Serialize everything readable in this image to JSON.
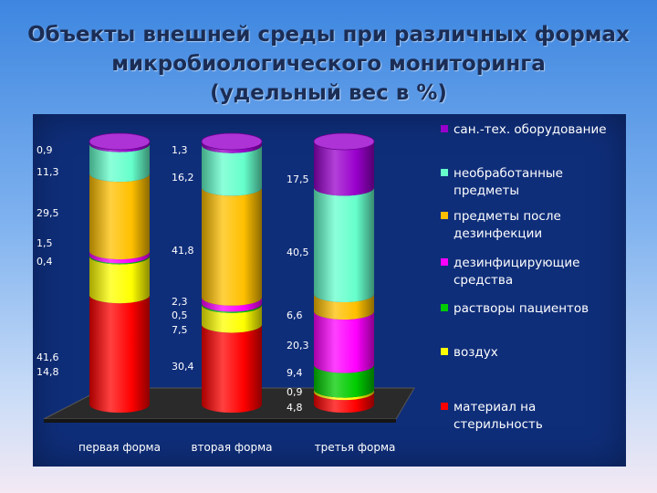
{
  "title": {
    "line1": "Объекты внешней среды при различных формах",
    "line2": "микробиологического мониторинга",
    "line3": "(удельный вес в %)"
  },
  "chart_data": {
    "type": "bar",
    "stacked": true,
    "style": "3d-cylinder",
    "categories": [
      "первая форма",
      "вторая форма",
      "третья форма"
    ],
    "series": [
      {
        "name": "материал на стерильность",
        "legend_lines": [
          "материал на",
          "стерильность"
        ],
        "color": "#ff0000",
        "values": [
          41.6,
          30.4,
          4.8
        ],
        "labels": [
          "41,6",
          "30,4",
          "4,8"
        ]
      },
      {
        "name": "воздух",
        "legend_lines": [
          "воздух"
        ],
        "color": "#ffff00",
        "values": [
          14.8,
          7.5,
          0.9
        ],
        "labels": [
          "14,8",
          "7,5",
          "0,9"
        ]
      },
      {
        "name": "растворы пациентов",
        "legend_lines": [
          "растворы пациентов"
        ],
        "color": "#00cc00",
        "values": [
          0.4,
          0.5,
          9.4
        ],
        "labels": [
          "0,4",
          "0,5",
          "9,4"
        ]
      },
      {
        "name": "дезинфицирующие средства",
        "legend_lines": [
          "дезинфицирующие",
          "средства"
        ],
        "color": "#ff00ff",
        "values": [
          1.5,
          2.3,
          20.3
        ],
        "labels": [
          "1,5",
          "2,3",
          "20,3"
        ]
      },
      {
        "name": "предметы после дезинфекции",
        "legend_lines": [
          "предметы после",
          "дезинфекции"
        ],
        "color": "#ffc000",
        "values": [
          29.5,
          41.8,
          6.6
        ],
        "labels": [
          "29,5",
          "41,8",
          "6,6"
        ]
      },
      {
        "name": "необработанные предметы",
        "legend_lines": [
          "необработанные",
          "предметы"
        ],
        "color": "#66ffcc",
        "values": [
          11.3,
          16.2,
          40.5
        ],
        "labels": [
          "11,3",
          "16,2",
          "40,5"
        ]
      },
      {
        "name": "сан.-тех. оборудование",
        "legend_lines": [
          "сан.-тех. оборудование"
        ],
        "color": "#9900cc",
        "values": [
          0.9,
          1.3,
          17.5
        ],
        "labels": [
          "0,9",
          "1,3",
          "17,5"
        ]
      }
    ],
    "ylim": [
      0,
      100
    ],
    "legend_position": "right"
  }
}
